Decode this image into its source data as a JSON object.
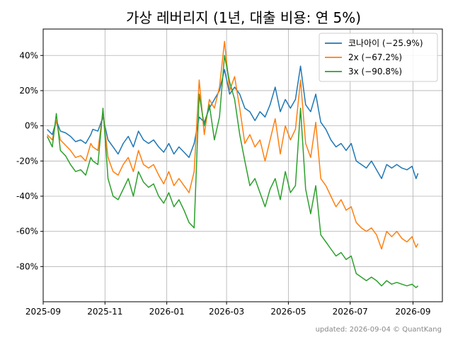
{
  "chart_data": {
    "type": "line",
    "title": "가상 레버리지 (1년, 대출 비용: 연 5%)",
    "xlabel": "",
    "ylabel": "",
    "xlim": [
      "2025-09-01",
      "2026-09-30"
    ],
    "ylim": [
      -100,
      55
    ],
    "x_ticks": [
      "2025-09",
      "2025-11",
      "2026-01",
      "2026-03",
      "2026-05",
      "2026-07",
      "2026-09"
    ],
    "y_ticks": [
      -80,
      -60,
      -40,
      -20,
      0,
      20,
      40
    ],
    "y_tick_labels": [
      "-80%",
      "-60%",
      "-40%",
      "-20%",
      "0%",
      "20%",
      "40%"
    ],
    "grid": true,
    "legend_position": "top-right",
    "footnote": "updated: 2026-09-04 © QuantKang",
    "series": [
      {
        "name": "코나아이 (−25.9%)",
        "color": "#1f77b4",
        "points": [
          [
            "2025-09-05",
            -2
          ],
          [
            "2025-09-10",
            -5
          ],
          [
            "2025-09-14",
            3
          ],
          [
            "2025-09-18",
            -3
          ],
          [
            "2025-09-23",
            -4
          ],
          [
            "2025-09-28",
            -6
          ],
          [
            "2025-10-03",
            -9
          ],
          [
            "2025-10-08",
            -8
          ],
          [
            "2025-10-13",
            -10
          ],
          [
            "2025-10-18",
            -5
          ],
          [
            "2025-10-20",
            -2
          ],
          [
            "2025-10-25",
            -3
          ],
          [
            "2025-10-30",
            5
          ],
          [
            "2025-11-04",
            -8
          ],
          [
            "2025-11-09",
            -12
          ],
          [
            "2025-11-14",
            -16
          ],
          [
            "2025-11-19",
            -10
          ],
          [
            "2025-11-24",
            -6
          ],
          [
            "2025-11-29",
            -12
          ],
          [
            "2025-12-04",
            -3
          ],
          [
            "2025-12-09",
            -8
          ],
          [
            "2025-12-14",
            -10
          ],
          [
            "2025-12-19",
            -8
          ],
          [
            "2025-12-24",
            -12
          ],
          [
            "2025-12-29",
            -15
          ],
          [
            "2026-01-03",
            -10
          ],
          [
            "2026-01-08",
            -16
          ],
          [
            "2026-01-13",
            -12
          ],
          [
            "2026-01-18",
            -15
          ],
          [
            "2026-01-23",
            -18
          ],
          [
            "2026-01-28",
            -10
          ],
          [
            "2026-02-02",
            5
          ],
          [
            "2026-02-07",
            2
          ],
          [
            "2026-02-12",
            10
          ],
          [
            "2026-02-17",
            15
          ],
          [
            "2026-02-22",
            20
          ],
          [
            "2026-02-27",
            32
          ],
          [
            "2026-03-04",
            18
          ],
          [
            "2026-03-09",
            22
          ],
          [
            "2026-03-14",
            18
          ],
          [
            "2026-03-19",
            10
          ],
          [
            "2026-03-24",
            8
          ],
          [
            "2026-03-29",
            3
          ],
          [
            "2026-04-03",
            8
          ],
          [
            "2026-04-08",
            5
          ],
          [
            "2026-04-13",
            12
          ],
          [
            "2026-04-18",
            22
          ],
          [
            "2026-04-23",
            8
          ],
          [
            "2026-04-28",
            15
          ],
          [
            "2026-05-03",
            10
          ],
          [
            "2026-05-08",
            15
          ],
          [
            "2026-05-13",
            34
          ],
          [
            "2026-05-18",
            12
          ],
          [
            "2026-05-23",
            8
          ],
          [
            "2026-05-28",
            18
          ],
          [
            "2026-06-02",
            2
          ],
          [
            "2026-06-07",
            -2
          ],
          [
            "2026-06-12",
            -8
          ],
          [
            "2026-06-17",
            -12
          ],
          [
            "2026-06-22",
            -10
          ],
          [
            "2026-06-27",
            -14
          ],
          [
            "2026-07-02",
            -10
          ],
          [
            "2026-07-07",
            -20
          ],
          [
            "2026-07-12",
            -22
          ],
          [
            "2026-07-17",
            -24
          ],
          [
            "2026-07-22",
            -20
          ],
          [
            "2026-07-27",
            -25
          ],
          [
            "2026-08-01",
            -30
          ],
          [
            "2026-08-06",
            -22
          ],
          [
            "2026-08-11",
            -24
          ],
          [
            "2026-08-16",
            -22
          ],
          [
            "2026-08-21",
            -24
          ],
          [
            "2026-08-26",
            -25
          ],
          [
            "2026-08-31",
            -23
          ],
          [
            "2026-09-04",
            -30
          ],
          [
            "2026-09-06",
            -27
          ]
        ]
      },
      {
        "name": "2x (−67.2%)",
        "color": "#ff7f0e",
        "points": [
          [
            "2025-09-05",
            -5
          ],
          [
            "2025-09-10",
            -8
          ],
          [
            "2025-09-14",
            3
          ],
          [
            "2025-09-18",
            -8
          ],
          [
            "2025-09-23",
            -11
          ],
          [
            "2025-09-28",
            -14
          ],
          [
            "2025-10-03",
            -18
          ],
          [
            "2025-10-08",
            -17
          ],
          [
            "2025-10-13",
            -20
          ],
          [
            "2025-10-18",
            -10
          ],
          [
            "2025-10-20",
            -12
          ],
          [
            "2025-10-25",
            -14
          ],
          [
            "2025-10-30",
            8
          ],
          [
            "2025-11-04",
            -18
          ],
          [
            "2025-11-09",
            -26
          ],
          [
            "2025-11-14",
            -28
          ],
          [
            "2025-11-19",
            -22
          ],
          [
            "2025-11-24",
            -18
          ],
          [
            "2025-11-29",
            -26
          ],
          [
            "2025-12-04",
            -14
          ],
          [
            "2025-12-09",
            -22
          ],
          [
            "2025-12-14",
            -24
          ],
          [
            "2025-12-19",
            -22
          ],
          [
            "2025-12-24",
            -28
          ],
          [
            "2025-12-29",
            -33
          ],
          [
            "2026-01-03",
            -26
          ],
          [
            "2026-01-08",
            -34
          ],
          [
            "2026-01-13",
            -30
          ],
          [
            "2026-01-18",
            -34
          ],
          [
            "2026-01-23",
            -38
          ],
          [
            "2026-01-28",
            -26
          ],
          [
            "2026-02-02",
            26
          ],
          [
            "2026-02-07",
            -5
          ],
          [
            "2026-02-12",
            15
          ],
          [
            "2026-02-17",
            10
          ],
          [
            "2026-02-22",
            22
          ],
          [
            "2026-02-27",
            48
          ],
          [
            "2026-03-04",
            20
          ],
          [
            "2026-03-09",
            28
          ],
          [
            "2026-03-14",
            10
          ],
          [
            "2026-03-19",
            -10
          ],
          [
            "2026-03-24",
            -5
          ],
          [
            "2026-03-29",
            -12
          ],
          [
            "2026-04-03",
            -8
          ],
          [
            "2026-04-08",
            -20
          ],
          [
            "2026-04-13",
            -8
          ],
          [
            "2026-04-18",
            4
          ],
          [
            "2026-04-23",
            -16
          ],
          [
            "2026-04-28",
            0
          ],
          [
            "2026-05-03",
            -8
          ],
          [
            "2026-05-08",
            -2
          ],
          [
            "2026-05-13",
            26
          ],
          [
            "2026-05-18",
            -10
          ],
          [
            "2026-05-23",
            -18
          ],
          [
            "2026-05-28",
            2
          ],
          [
            "2026-06-02",
            -30
          ],
          [
            "2026-06-07",
            -34
          ],
          [
            "2026-06-12",
            -40
          ],
          [
            "2026-06-17",
            -46
          ],
          [
            "2026-06-22",
            -42
          ],
          [
            "2026-06-27",
            -48
          ],
          [
            "2026-07-02",
            -46
          ],
          [
            "2026-07-07",
            -55
          ],
          [
            "2026-07-12",
            -58
          ],
          [
            "2026-07-17",
            -60
          ],
          [
            "2026-07-22",
            -58
          ],
          [
            "2026-07-27",
            -62
          ],
          [
            "2026-08-01",
            -70
          ],
          [
            "2026-08-06",
            -60
          ],
          [
            "2026-08-11",
            -63
          ],
          [
            "2026-08-16",
            -60
          ],
          [
            "2026-08-21",
            -64
          ],
          [
            "2026-08-26",
            -66
          ],
          [
            "2026-08-31",
            -63
          ],
          [
            "2026-09-04",
            -69
          ],
          [
            "2026-09-06",
            -67
          ]
        ]
      },
      {
        "name": "3x (−90.8%)",
        "color": "#2ca02c",
        "points": [
          [
            "2025-09-05",
            -6
          ],
          [
            "2025-09-10",
            -12
          ],
          [
            "2025-09-14",
            7
          ],
          [
            "2025-09-18",
            -14
          ],
          [
            "2025-09-23",
            -17
          ],
          [
            "2025-09-28",
            -22
          ],
          [
            "2025-10-03",
            -26
          ],
          [
            "2025-10-08",
            -25
          ],
          [
            "2025-10-13",
            -28
          ],
          [
            "2025-10-18",
            -18
          ],
          [
            "2025-10-20",
            -20
          ],
          [
            "2025-10-25",
            -22
          ],
          [
            "2025-10-30",
            10
          ],
          [
            "2025-11-04",
            -30
          ],
          [
            "2025-11-09",
            -40
          ],
          [
            "2025-11-14",
            -42
          ],
          [
            "2025-11-19",
            -36
          ],
          [
            "2025-11-24",
            -30
          ],
          [
            "2025-11-29",
            -40
          ],
          [
            "2025-12-04",
            -26
          ],
          [
            "2025-12-09",
            -32
          ],
          [
            "2025-12-14",
            -35
          ],
          [
            "2025-12-19",
            -33
          ],
          [
            "2025-12-24",
            -40
          ],
          [
            "2025-12-29",
            -44
          ],
          [
            "2026-01-03",
            -38
          ],
          [
            "2026-01-08",
            -46
          ],
          [
            "2026-01-13",
            -42
          ],
          [
            "2026-01-18",
            -48
          ],
          [
            "2026-01-23",
            -55
          ],
          [
            "2026-01-28",
            -58
          ],
          [
            "2026-02-02",
            18
          ],
          [
            "2026-02-07",
            0
          ],
          [
            "2026-02-12",
            12
          ],
          [
            "2026-02-17",
            -8
          ],
          [
            "2026-02-22",
            5
          ],
          [
            "2026-02-27",
            40
          ],
          [
            "2026-03-04",
            25
          ],
          [
            "2026-03-09",
            15
          ],
          [
            "2026-03-14",
            -5
          ],
          [
            "2026-03-19",
            -20
          ],
          [
            "2026-03-24",
            -34
          ],
          [
            "2026-03-29",
            -30
          ],
          [
            "2026-04-03",
            -38
          ],
          [
            "2026-04-08",
            -46
          ],
          [
            "2026-04-13",
            -36
          ],
          [
            "2026-04-18",
            -30
          ],
          [
            "2026-04-23",
            -42
          ],
          [
            "2026-04-28",
            -26
          ],
          [
            "2026-05-03",
            -38
          ],
          [
            "2026-05-08",
            -34
          ],
          [
            "2026-05-13",
            10
          ],
          [
            "2026-05-18",
            -36
          ],
          [
            "2026-05-23",
            -50
          ],
          [
            "2026-05-28",
            -34
          ],
          [
            "2026-06-02",
            -62
          ],
          [
            "2026-06-07",
            -66
          ],
          [
            "2026-06-12",
            -70
          ],
          [
            "2026-06-17",
            -74
          ],
          [
            "2026-06-22",
            -72
          ],
          [
            "2026-06-27",
            -76
          ],
          [
            "2026-07-02",
            -74
          ],
          [
            "2026-07-07",
            -84
          ],
          [
            "2026-07-12",
            -86
          ],
          [
            "2026-07-17",
            -88
          ],
          [
            "2026-07-22",
            -86
          ],
          [
            "2026-07-27",
            -88
          ],
          [
            "2026-08-01",
            -91
          ],
          [
            "2026-08-06",
            -88
          ],
          [
            "2026-08-11",
            -90
          ],
          [
            "2026-08-16",
            -89
          ],
          [
            "2026-08-21",
            -90
          ],
          [
            "2026-08-26",
            -91
          ],
          [
            "2026-08-31",
            -90
          ],
          [
            "2026-09-04",
            -92
          ],
          [
            "2026-09-06",
            -91
          ]
        ]
      }
    ]
  }
}
